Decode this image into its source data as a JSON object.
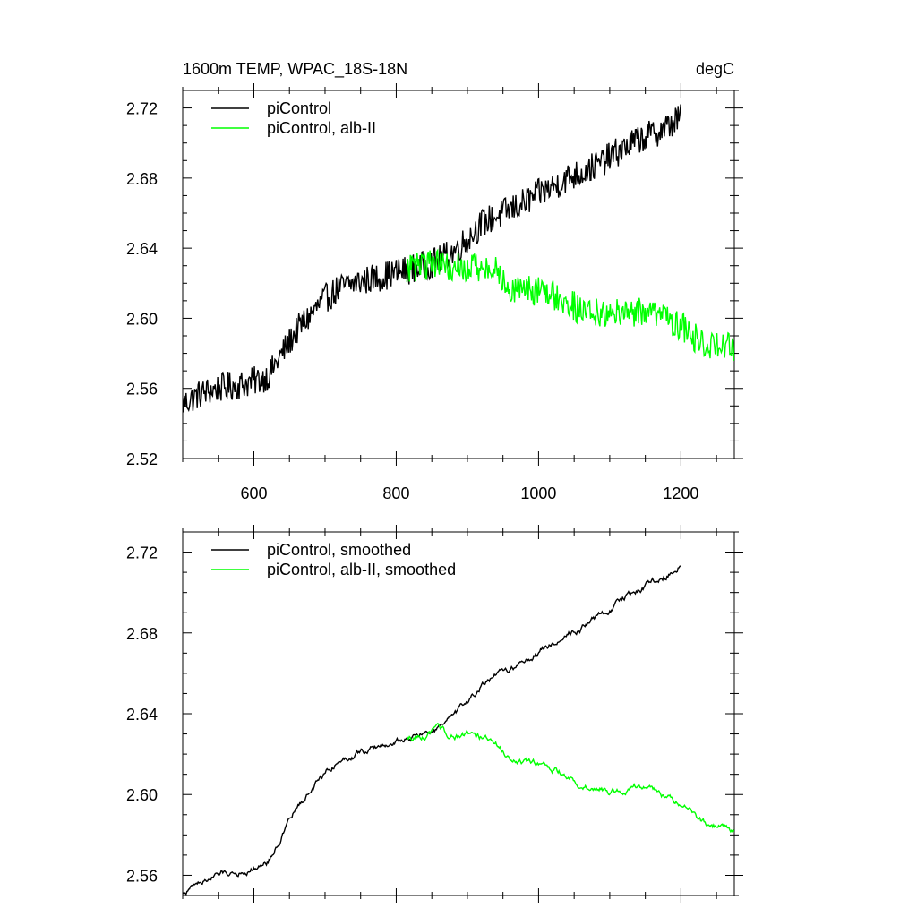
{
  "chart_data": [
    {
      "type": "line",
      "title": "1600m TEMP, WPAC_18S-18N",
      "units": "degC",
      "xlabel": "",
      "ylabel": "",
      "xlim": [
        500,
        1275
      ],
      "ylim": [
        2.52,
        2.73
      ],
      "x_ticks": [
        600,
        800,
        1000,
        1200
      ],
      "x_tick_labels": [
        "600",
        "800",
        "1000",
        "1200"
      ],
      "y_ticks": [
        2.52,
        2.56,
        2.6,
        2.64,
        2.68,
        2.72
      ],
      "y_tick_labels": [
        "2.52",
        "2.56",
        "2.60",
        "2.64",
        "2.68",
        "2.72"
      ],
      "legend_position": "top-left",
      "series": [
        {
          "name": "piControl",
          "color": "#000000",
          "noise": 0.0085,
          "x": [
            500,
            520,
            540,
            560,
            580,
            600,
            620,
            640,
            660,
            680,
            700,
            720,
            740,
            760,
            780,
            800,
            820,
            840,
            860,
            880,
            900,
            920,
            940,
            960,
            980,
            1000,
            1020,
            1040,
            1060,
            1080,
            1100,
            1120,
            1140,
            1160,
            1180,
            1200
          ],
          "values": [
            2.551,
            2.556,
            2.559,
            2.561,
            2.562,
            2.564,
            2.567,
            2.58,
            2.593,
            2.602,
            2.611,
            2.617,
            2.62,
            2.622,
            2.624,
            2.626,
            2.628,
            2.63,
            2.633,
            2.638,
            2.645,
            2.654,
            2.658,
            2.662,
            2.666,
            2.671,
            2.675,
            2.68,
            2.683,
            2.687,
            2.692,
            2.697,
            2.702,
            2.705,
            2.709,
            2.715
          ]
        },
        {
          "name": "piControl, alb-II",
          "color": "#00ff00",
          "noise": 0.0085,
          "x": [
            815,
            840,
            860,
            880,
            900,
            920,
            940,
            960,
            980,
            1000,
            1020,
            1040,
            1060,
            1080,
            1100,
            1120,
            1140,
            1160,
            1180,
            1200,
            1220,
            1240,
            1260,
            1275
          ],
          "values": [
            2.628,
            2.63,
            2.631,
            2.629,
            2.63,
            2.628,
            2.627,
            2.617,
            2.616,
            2.615,
            2.613,
            2.61,
            2.604,
            2.604,
            2.602,
            2.603,
            2.604,
            2.603,
            2.599,
            2.596,
            2.589,
            2.584,
            2.585,
            2.582
          ]
        }
      ]
    },
    {
      "type": "line",
      "title": "",
      "xlabel": "",
      "ylabel": "",
      "xlim": [
        500,
        1275
      ],
      "ylim": [
        2.55,
        2.73
      ],
      "x_ticks": [
        600,
        800,
        1000,
        1200
      ],
      "y_ticks": [
        2.56,
        2.6,
        2.64,
        2.68,
        2.72
      ],
      "y_tick_labels": [
        "2.56",
        "2.60",
        "2.64",
        "2.68",
        "2.72"
      ],
      "legend_position": "top-left",
      "series": [
        {
          "name": "piControl, smoothed",
          "color": "#000000",
          "noise": 0.0018,
          "x": [
            500,
            520,
            540,
            560,
            580,
            600,
            620,
            640,
            660,
            680,
            700,
            720,
            740,
            760,
            780,
            800,
            820,
            840,
            860,
            880,
            900,
            920,
            940,
            960,
            980,
            1000,
            1020,
            1040,
            1060,
            1080,
            1100,
            1120,
            1140,
            1160,
            1180,
            1200
          ],
          "values": [
            2.551,
            2.556,
            2.559,
            2.561,
            2.562,
            2.564,
            2.567,
            2.58,
            2.593,
            2.602,
            2.611,
            2.617,
            2.62,
            2.622,
            2.624,
            2.626,
            2.628,
            2.63,
            2.633,
            2.638,
            2.645,
            2.654,
            2.658,
            2.662,
            2.666,
            2.671,
            2.675,
            2.68,
            2.683,
            2.687,
            2.692,
            2.697,
            2.702,
            2.705,
            2.709,
            2.715
          ]
        },
        {
          "name": "piControl, alb-II, smoothed",
          "color": "#00ff00",
          "noise": 0.0018,
          "x": [
            815,
            840,
            860,
            880,
            900,
            920,
            940,
            960,
            980,
            1000,
            1020,
            1040,
            1060,
            1080,
            1100,
            1120,
            1140,
            1160,
            1180,
            1200,
            1220,
            1240,
            1260,
            1275
          ],
          "values": [
            2.628,
            2.63,
            2.631,
            2.629,
            2.63,
            2.628,
            2.627,
            2.617,
            2.616,
            2.615,
            2.613,
            2.61,
            2.604,
            2.604,
            2.602,
            2.603,
            2.604,
            2.603,
            2.599,
            2.596,
            2.589,
            2.584,
            2.585,
            2.582
          ]
        }
      ]
    }
  ]
}
